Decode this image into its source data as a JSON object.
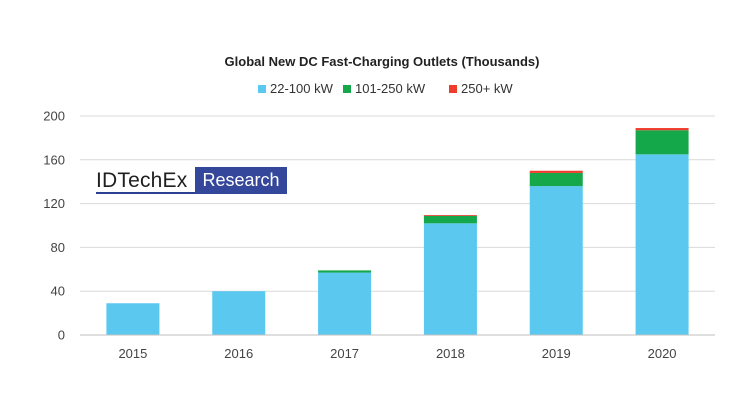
{
  "chart_data": {
    "type": "bar",
    "stacked": true,
    "title": "Global New DC Fast-Charging Outlets (Thousands)",
    "categories": [
      "2015",
      "2016",
      "2017",
      "2018",
      "2019",
      "2020"
    ],
    "series": [
      {
        "name": "22-100 kW",
        "color": "#5bc8ef",
        "values": [
          29,
          40,
          57,
          102,
          136,
          165
        ]
      },
      {
        "name": "101-250 kW",
        "color": "#14a84a",
        "values": [
          0,
          0,
          2,
          7,
          12,
          22
        ]
      },
      {
        "name": "250+ kW",
        "color": "#ee3d2c",
        "values": [
          0,
          0,
          0,
          0.5,
          2,
          2
        ]
      }
    ],
    "yticks": [
      0,
      40,
      80,
      120,
      160,
      200
    ],
    "ylim": [
      0,
      200
    ],
    "grid": true,
    "legend_position": "top-center",
    "xlabel": "",
    "ylabel": ""
  },
  "watermark": {
    "left_text": "IDTechEx",
    "right_text": "Research"
  }
}
